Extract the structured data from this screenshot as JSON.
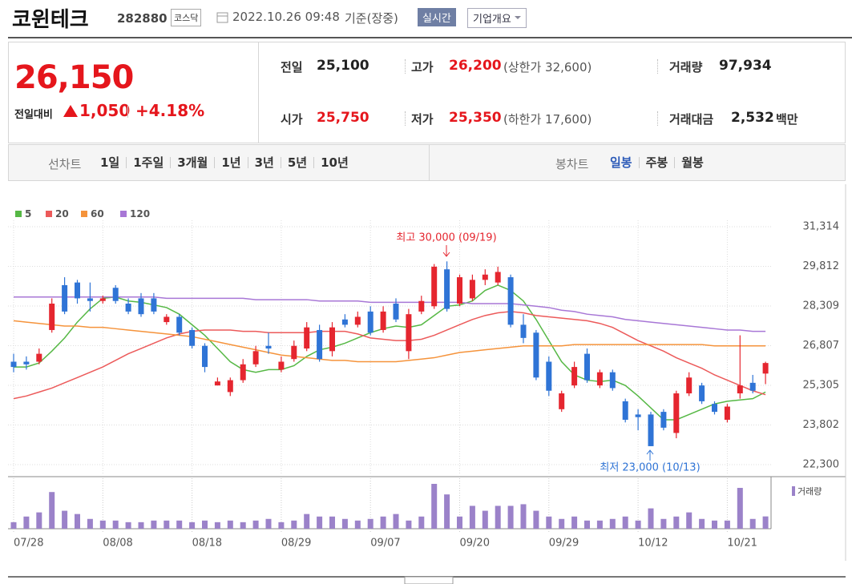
{
  "header": {
    "name": "코윈테크",
    "code": "282880",
    "market": "코스닥",
    "datetime": "2022.10.26 09:48",
    "basis": "기준(장중)",
    "realtime": "실시간",
    "overview": "기업개요"
  },
  "quote": {
    "price": "26,150",
    "change_label": "전일대비",
    "change": "1,050",
    "change_rate": "+4.18%",
    "fields": [
      {
        "label": "전일",
        "value": "25,100"
      },
      {
        "label": "고가",
        "value": "26,200",
        "note": "(상한가 32,600)"
      },
      {
        "label": "거래량",
        "value": "97,934"
      },
      {
        "label": "시가",
        "value": "25,750"
      },
      {
        "label": "저가",
        "value": "25,350",
        "note": "(하한가 17,600)"
      },
      {
        "label": "거래대금",
        "value": "2,532",
        "unit": "백만"
      }
    ]
  },
  "tabs": {
    "line_label": "선차트",
    "line_items": [
      "1일",
      "1주일",
      "3개월",
      "1년",
      "3년",
      "5년",
      "10년"
    ],
    "candle_label": "봉차트",
    "candle_items": [
      "일봉",
      "주봉",
      "월봉"
    ]
  },
  "chart_data": {
    "type": "candlestick",
    "categories": [
      "07/28",
      null,
      null,
      null,
      null,
      null,
      null,
      "08/08",
      null,
      null,
      null,
      null,
      null,
      null,
      "08/18",
      null,
      null,
      null,
      null,
      null,
      null,
      "08/29",
      null,
      null,
      null,
      null,
      null,
      null,
      "09/07",
      null,
      null,
      null,
      null,
      null,
      null,
      "09/20",
      null,
      null,
      null,
      null,
      null,
      null,
      "09/29",
      null,
      null,
      null,
      null,
      null,
      null,
      "10/12",
      null,
      null,
      null,
      null,
      null,
      null,
      "10/21",
      null,
      null,
      null
    ],
    "open": [
      26200,
      26200,
      26200,
      27400,
      29100,
      29200,
      28600,
      28500,
      29000,
      28400,
      28600,
      28600,
      27700,
      27900,
      27400,
      26800,
      25300,
      25050,
      25500,
      26100,
      26800,
      25900,
      26300,
      26700,
      27400,
      26600,
      27800,
      27600,
      28100,
      27400,
      28400,
      26600,
      28100,
      28300,
      29700,
      28400,
      28600,
      29300,
      29200,
      29400,
      27600,
      27300,
      26200,
      24400,
      25300,
      26500,
      25300,
      25800,
      24700,
      24200,
      24200,
      24300,
      23500,
      25000,
      25300,
      24600,
      24000,
      25000,
      25400,
      25750
    ],
    "high": [
      26500,
      26400,
      26700,
      28600,
      29400,
      29300,
      29200,
      28700,
      29100,
      28600,
      28800,
      28800,
      28000,
      28000,
      27500,
      26900,
      25600,
      25600,
      26300,
      26800,
      27300,
      26400,
      27000,
      27700,
      27600,
      27700,
      28000,
      28100,
      28300,
      28300,
      28600,
      28200,
      28700,
      29900,
      30000,
      29500,
      29500,
      29700,
      29800,
      29500,
      28000,
      27400,
      26400,
      25100,
      26200,
      26700,
      25900,
      25900,
      24800,
      24400,
      24300,
      24400,
      25100,
      25800,
      25400,
      24700,
      24600,
      27200,
      25700,
      26200
    ],
    "low": [
      25800,
      25900,
      26100,
      27300,
      28000,
      28400,
      28100,
      28400,
      28400,
      28000,
      27900,
      28000,
      27600,
      27200,
      26700,
      25800,
      25300,
      24900,
      25400,
      26000,
      26500,
      25800,
      26200,
      26600,
      26200,
      26400,
      27500,
      27500,
      27200,
      27300,
      27700,
      26300,
      28000,
      28200,
      28100,
      28300,
      28500,
      29100,
      29100,
      27500,
      26900,
      25500,
      24900,
      24300,
      25200,
      25400,
      25200,
      25100,
      23900,
      23600,
      23000,
      23600,
      23300,
      24900,
      24600,
      24200,
      23900,
      24800,
      25000,
      25350
    ],
    "close": [
      26000,
      26100,
      26500,
      28400,
      28100,
      28600,
      28500,
      28600,
      28500,
      28100,
      28000,
      28100,
      27900,
      27300,
      26800,
      26000,
      25450,
      25500,
      26100,
      26600,
      26700,
      26200,
      26800,
      27500,
      26300,
      27500,
      27600,
      27900,
      27300,
      28100,
      27800,
      28000,
      28500,
      29800,
      28200,
      29400,
      29300,
      29500,
      29600,
      27600,
      27100,
      25600,
      25100,
      25000,
      26000,
      25500,
      25800,
      25200,
      24000,
      24100,
      23000,
      23700,
      25000,
      25600,
      24700,
      24300,
      24500,
      25300,
      25100,
      26150
    ],
    "up_color": "#e5262f",
    "down_color": "#2f74d6",
    "ylim": [
      21936,
      31951
    ],
    "yticks": [
      {
        "value": 22300,
        "label": "22,300"
      },
      {
        "value": 23802,
        "label": "23,802"
      },
      {
        "value": 25305,
        "label": "25,305"
      },
      {
        "value": 26807,
        "label": "26,807"
      },
      {
        "value": 28309,
        "label": "28,309"
      },
      {
        "value": 29812,
        "label": "29,812"
      },
      {
        "value": 31314,
        "label": "31,314"
      }
    ],
    "grid": true,
    "moving_averages": [
      {
        "name": "5",
        "color": "#56b845",
        "values": [
          26000,
          26000,
          26150,
          26600,
          27100,
          27700,
          28200,
          28600,
          28650,
          28500,
          28450,
          28350,
          28250,
          28000,
          27600,
          27200,
          26700,
          26200,
          25900,
          25800,
          25900,
          25900,
          26050,
          26400,
          26650,
          26750,
          26900,
          27100,
          27300,
          27450,
          27550,
          27500,
          27600,
          27950,
          28300,
          28350,
          28500,
          28900,
          29100,
          28900,
          28500,
          27800,
          27000,
          26200,
          25700,
          25500,
          25450,
          25500,
          25300,
          24900,
          24450,
          24000,
          24000,
          24200,
          24400,
          24600,
          24700,
          24750,
          24800,
          25050
        ]
      },
      {
        "name": "20",
        "color": "#ec5a5a",
        "values": [
          24800,
          24900,
          25050,
          25200,
          25400,
          25600,
          25800,
          26000,
          26250,
          26500,
          26700,
          26900,
          27100,
          27250,
          27350,
          27400,
          27400,
          27400,
          27350,
          27350,
          27300,
          27300,
          27300,
          27300,
          27350,
          27350,
          27350,
          27250,
          27100,
          27050,
          27000,
          27000,
          27050,
          27200,
          27400,
          27600,
          27800,
          27950,
          28050,
          28100,
          28050,
          27950,
          27900,
          27850,
          27800,
          27750,
          27650,
          27500,
          27250,
          27000,
          26800,
          26600,
          26350,
          26150,
          25950,
          25700,
          25500,
          25300,
          25100,
          24950
        ]
      },
      {
        "name": "60",
        "color": "#f5933b",
        "values": [
          27750,
          27700,
          27650,
          27600,
          27550,
          27550,
          27500,
          27500,
          27450,
          27400,
          27350,
          27300,
          27250,
          27200,
          27150,
          27050,
          26950,
          26850,
          26750,
          26650,
          26550,
          26450,
          26400,
          26350,
          26300,
          26250,
          26250,
          26200,
          26200,
          26200,
          26200,
          26250,
          26300,
          26350,
          26450,
          26550,
          26600,
          26650,
          26700,
          26750,
          26800,
          26800,
          26800,
          26800,
          26850,
          26850,
          26850,
          26850,
          26850,
          26850,
          26850,
          26850,
          26850,
          26850,
          26850,
          26800,
          26800,
          26800,
          26800,
          26800
        ]
      },
      {
        "name": "120",
        "color": "#a877d6",
        "values": [
          28650,
          28650,
          28650,
          28650,
          28650,
          28650,
          28650,
          28650,
          28650,
          28650,
          28650,
          28650,
          28600,
          28600,
          28600,
          28600,
          28600,
          28600,
          28600,
          28550,
          28550,
          28550,
          28550,
          28550,
          28500,
          28500,
          28500,
          28500,
          28450,
          28450,
          28450,
          28450,
          28450,
          28450,
          28450,
          28450,
          28400,
          28400,
          28400,
          28400,
          28350,
          28300,
          28250,
          28150,
          28100,
          28000,
          27950,
          27900,
          27800,
          27750,
          27700,
          27650,
          27600,
          27550,
          27500,
          27450,
          27400,
          27400,
          27350,
          27350
        ]
      }
    ],
    "volume": {
      "name": "거래량",
      "color": "#9b82c9",
      "values": [
        52000,
        97000,
        130000,
        292000,
        143000,
        117000,
        78000,
        65000,
        65000,
        52000,
        52000,
        65000,
        65000,
        65000,
        52000,
        65000,
        52000,
        65000,
        52000,
        65000,
        78000,
        52000,
        65000,
        117000,
        97000,
        97000,
        78000,
        65000,
        78000,
        97000,
        117000,
        65000,
        97000,
        357000,
        273000,
        97000,
        182000,
        143000,
        182000,
        182000,
        195000,
        143000,
        97000,
        78000,
        97000,
        65000,
        65000,
        78000,
        97000,
        65000,
        162000,
        78000,
        97000,
        130000,
        78000,
        65000,
        65000,
        325000,
        78000,
        97934
      ]
    },
    "annotations": [
      "최고 30,000 (09/19)",
      "최저 23,000 (10/13)"
    ]
  }
}
